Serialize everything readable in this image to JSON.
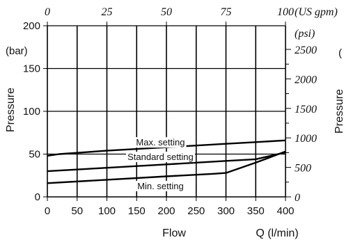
{
  "chart_data": {
    "type": "line",
    "xlabel": "Flow",
    "x_unit_label": "Q (l/min)",
    "ylabel": "Pressure",
    "y_unit_label": "(bar)",
    "secondary_x_unit_label": "(US gpm)",
    "secondary_y_unit_label": "(psi)",
    "xlim": [
      0,
      400
    ],
    "ylim": [
      0,
      200
    ],
    "x_ticks": [
      0,
      50,
      100,
      150,
      200,
      250,
      300,
      350,
      400
    ],
    "x_tick_labels": [
      "0",
      "50",
      "100",
      "150",
      "200",
      "250",
      "300",
      "350",
      "400"
    ],
    "y_ticks": [
      0,
      50,
      100,
      150,
      200
    ],
    "y_tick_labels": [
      "0",
      "50",
      "100",
      "150",
      "200"
    ],
    "secondary_x_ticks": [
      0,
      25,
      50,
      75,
      100
    ],
    "secondary_x_tick_labels": [
      "0",
      "25",
      "50",
      "75",
      "100"
    ],
    "secondary_y_ticks": [
      0,
      500,
      1000,
      1500,
      2000,
      2500
    ],
    "secondary_y_tick_labels": [
      "0",
      "500",
      "1000",
      "1500",
      "2000",
      "2500"
    ],
    "grid": true,
    "series": [
      {
        "name": "Max. setting",
        "x": [
          0,
          20,
          100,
          200,
          300,
          350,
          400
        ],
        "y": [
          48,
          50,
          54,
          58,
          62,
          64,
          66
        ]
      },
      {
        "name": "Standard setting",
        "x": [
          0,
          100,
          200,
          300,
          350,
          400
        ],
        "y": [
          30,
          34,
          38,
          42,
          44,
          52
        ]
      },
      {
        "name": "Min. setting",
        "x": [
          0,
          100,
          200,
          280,
          300,
          350,
          400
        ],
        "y": [
          16,
          20,
          24,
          27,
          28,
          40,
          53
        ]
      }
    ],
    "annotations": [
      {
        "text": "Max. setting",
        "series": 0
      },
      {
        "text": "Standard setting",
        "series": 1
      },
      {
        "text": "Min. setting",
        "series": 2
      }
    ],
    "truncated_right_text": [
      "(",
      "Pressure"
    ]
  }
}
